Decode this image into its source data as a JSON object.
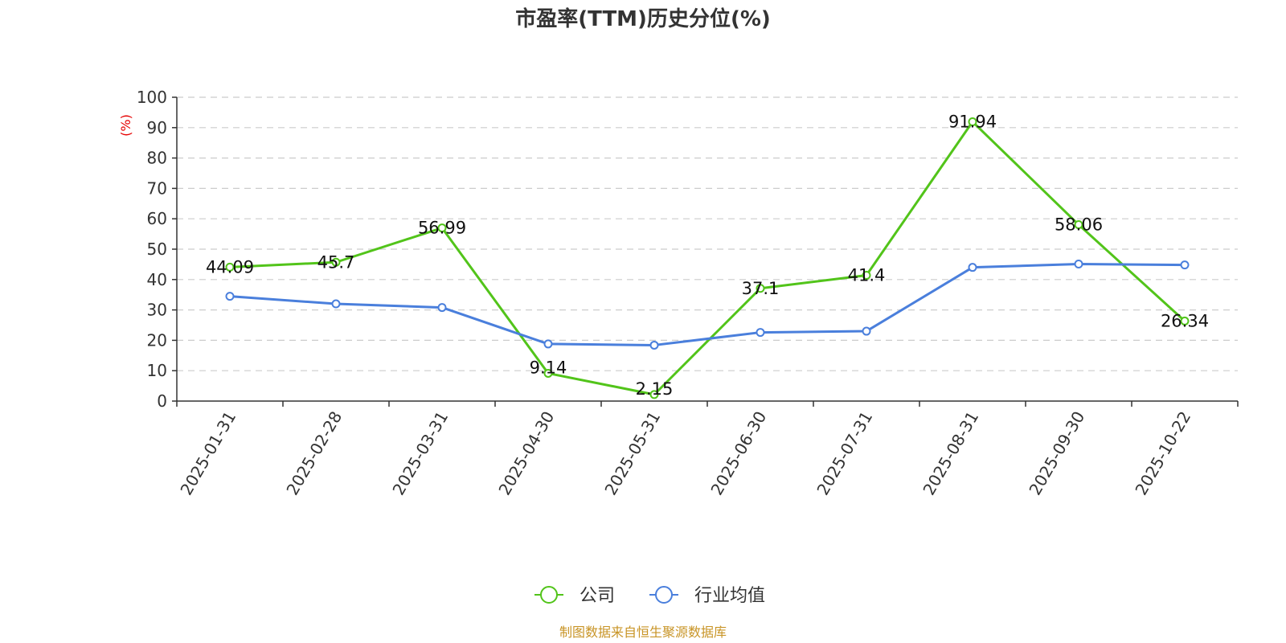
{
  "chart_data": {
    "type": "line",
    "title": "市盈率(TTM)历史分位(%)",
    "ylabel": "(%)",
    "xlabel": "",
    "ylim": [
      0,
      100
    ],
    "yticks": [
      0,
      10,
      20,
      30,
      40,
      50,
      60,
      70,
      80,
      90,
      100
    ],
    "grid": true,
    "legend_position": "bottom-center",
    "categories": [
      "2025-01-31",
      "2025-02-28",
      "2025-03-31",
      "2025-04-30",
      "2025-05-31",
      "2025-06-30",
      "2025-07-31",
      "2025-08-31",
      "2025-09-30",
      "2025-10-22"
    ],
    "series": [
      {
        "name": "公司",
        "color": "#52c41a",
        "values": [
          44.09,
          45.7,
          56.99,
          9.14,
          2.15,
          37.1,
          41.4,
          91.94,
          58.06,
          26.34
        ],
        "labels": [
          "44.09",
          "45.7",
          "56.99",
          "9.14",
          "2.15",
          "37.1",
          "41.4",
          "91.94",
          "58.06",
          "26.34"
        ]
      },
      {
        "name": "行业均值",
        "color": "#4a7fdc",
        "values": [
          34.5,
          32.0,
          30.8,
          18.8,
          18.4,
          22.6,
          23.0,
          44.0,
          45.1,
          44.8
        ]
      }
    ],
    "source": "制图数据来自恒生聚源数据库"
  }
}
